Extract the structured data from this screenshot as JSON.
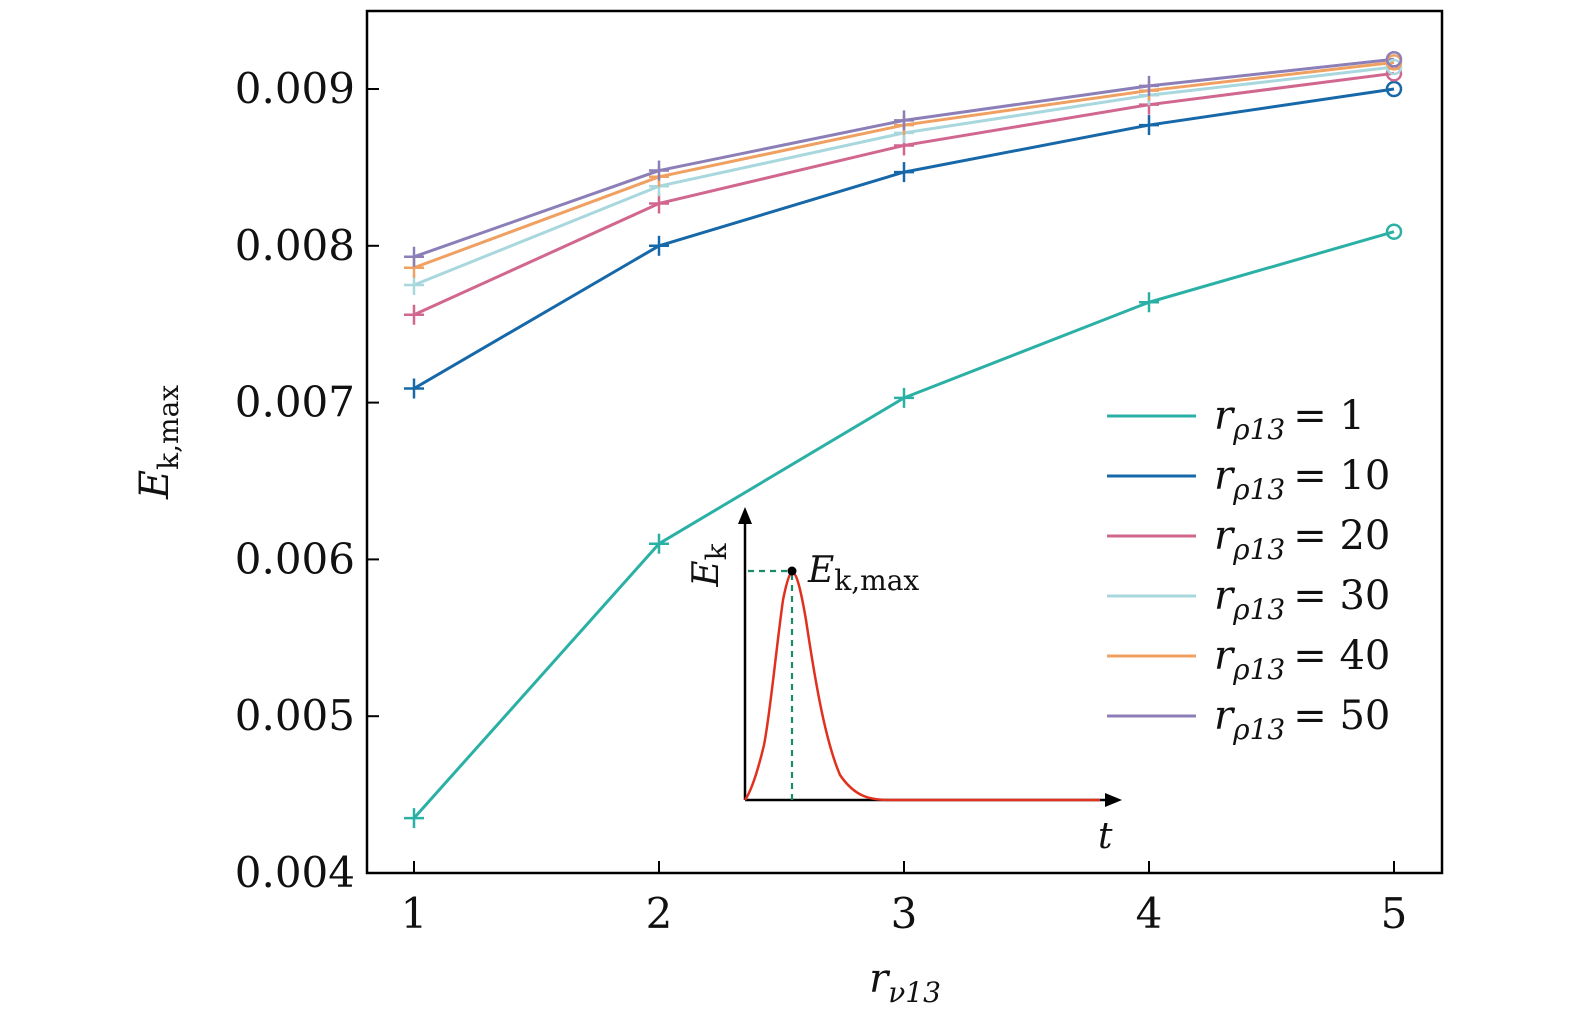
{
  "chart_data": {
    "type": "line",
    "x": [
      1,
      2,
      3,
      4,
      5
    ],
    "xlim": [
      0.8,
      5.2
    ],
    "ylim": [
      0.004,
      0.0095
    ],
    "xticks": [
      "1",
      "2",
      "3",
      "4",
      "5"
    ],
    "yticks": [
      "0.004",
      "0.005",
      "0.006",
      "0.007",
      "0.008",
      "0.009"
    ],
    "xtick_values": [
      1,
      2,
      3,
      4,
      5
    ],
    "ytick_values": [
      0.004,
      0.005,
      0.006,
      0.007,
      0.008,
      0.009
    ],
    "xlabel": {
      "main": "r",
      "sub": "ν13"
    },
    "ylabel": {
      "main": "E",
      "sub": "k,max"
    },
    "legend_position": "right",
    "series": [
      {
        "name": "r_ρ13 = 1",
        "legend_sub": "ρ13",
        "legend_value": "= 1",
        "color": "#2bb0a6",
        "values": [
          0.00435,
          0.0061,
          0.00703,
          0.00764,
          0.00809
        ]
      },
      {
        "name": "r_ρ13 = 10",
        "legend_sub": "ρ13",
        "legend_value": "= 10",
        "color": "#1768a8",
        "values": [
          0.00709,
          0.008,
          0.00847,
          0.00877,
          0.009
        ]
      },
      {
        "name": "r_ρ13 = 20",
        "legend_sub": "ρ13",
        "legend_value": "= 20",
        "color": "#d1678f",
        "values": [
          0.00756,
          0.00827,
          0.00864,
          0.0089,
          0.0091
        ]
      },
      {
        "name": "r_ρ13 = 30",
        "legend_sub": "ρ13",
        "legend_value": "= 30",
        "color": "#a8d8de",
        "values": [
          0.00775,
          0.00838,
          0.00872,
          0.00896,
          0.00914
        ]
      },
      {
        "name": "r_ρ13 = 40",
        "legend_sub": "ρ13",
        "legend_value": "= 40",
        "color": "#f0a060",
        "values": [
          0.00786,
          0.00844,
          0.00877,
          0.00899,
          0.00917
        ]
      },
      {
        "name": "r_ρ13 = 50",
        "legend_sub": "ρ13",
        "legend_value": "= 50",
        "color": "#8c7fb8",
        "values": [
          0.00793,
          0.00848,
          0.0088,
          0.00902,
          0.00919
        ]
      }
    ],
    "markers": {
      "first_points": "+",
      "last_point": "o"
    },
    "inset": {
      "description": "kinetic energy pulse vs time",
      "ylabel": {
        "main": "E",
        "sub": "k"
      },
      "xlabel": "t",
      "peak_label": {
        "main": "E",
        "sub": "k,max"
      },
      "curve_color": "#e0301e",
      "guide_color": "#1a8a6a"
    }
  }
}
